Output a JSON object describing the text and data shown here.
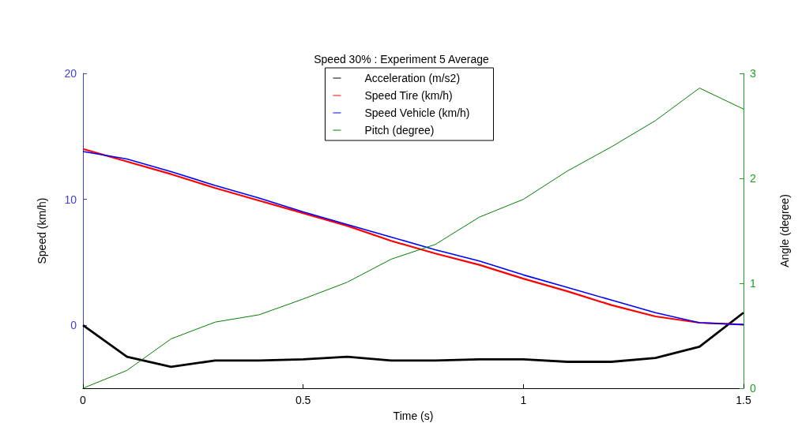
{
  "chart_data": {
    "type": "line",
    "title": "Speed 30% : Experiment 5 Average",
    "xlabel": "Time (s)",
    "ylabel": "Speed (km/h)",
    "y2label": "Angle (degree)",
    "x": [
      0,
      0.1,
      0.2,
      0.3,
      0.4,
      0.5,
      0.6,
      0.7,
      0.8,
      0.9,
      1.0,
      1.1,
      1.2,
      1.3,
      1.4,
      1.5
    ],
    "series": [
      {
        "name": "Acceleration (m/s2)",
        "color": "#000000",
        "values": [
          0,
          -2.5,
          -3.3,
          -2.8,
          -2.8,
          -2.7,
          -2.5,
          -2.8,
          -2.8,
          -2.7,
          -2.7,
          -2.9,
          -2.9,
          -2.6,
          -1.7,
          1.0
        ]
      },
      {
        "name": "Speed Tire (km/h)",
        "color": "#ff0000",
        "values": [
          14.0,
          13.0,
          12.0,
          10.9,
          9.9,
          8.9,
          7.9,
          6.7,
          5.7,
          4.8,
          3.7,
          2.7,
          1.6,
          0.7,
          0.2,
          0.05
        ]
      },
      {
        "name": "Speed Vehicle (km/h)",
        "color": "#0000ff",
        "values": [
          13.8,
          13.2,
          12.2,
          11.1,
          10.1,
          9.0,
          8.0,
          7.0,
          6.0,
          5.1,
          4.0,
          3.0,
          2.0,
          1.0,
          0.2,
          0.05
        ]
      },
      {
        "name": "Pitch (degree)",
        "color": "#008000",
        "axis": "y2",
        "values": [
          0,
          0.17,
          0.47,
          0.63,
          0.7,
          0.85,
          1.01,
          1.23,
          1.37,
          1.63,
          1.8,
          2.07,
          2.3,
          2.55,
          2.86,
          2.66
        ]
      }
    ],
    "xlim": [
      0,
      1.5
    ],
    "xticks": [
      0,
      0.5,
      1,
      1.5
    ],
    "ylim": [
      -5,
      20
    ],
    "yticks": [
      0,
      10,
      20
    ],
    "y2lim": [
      0,
      3
    ],
    "y2ticks": [
      0,
      1,
      2,
      3
    ],
    "grid": false,
    "legend": "top",
    "marker": "none",
    "line_style": "solid"
  }
}
